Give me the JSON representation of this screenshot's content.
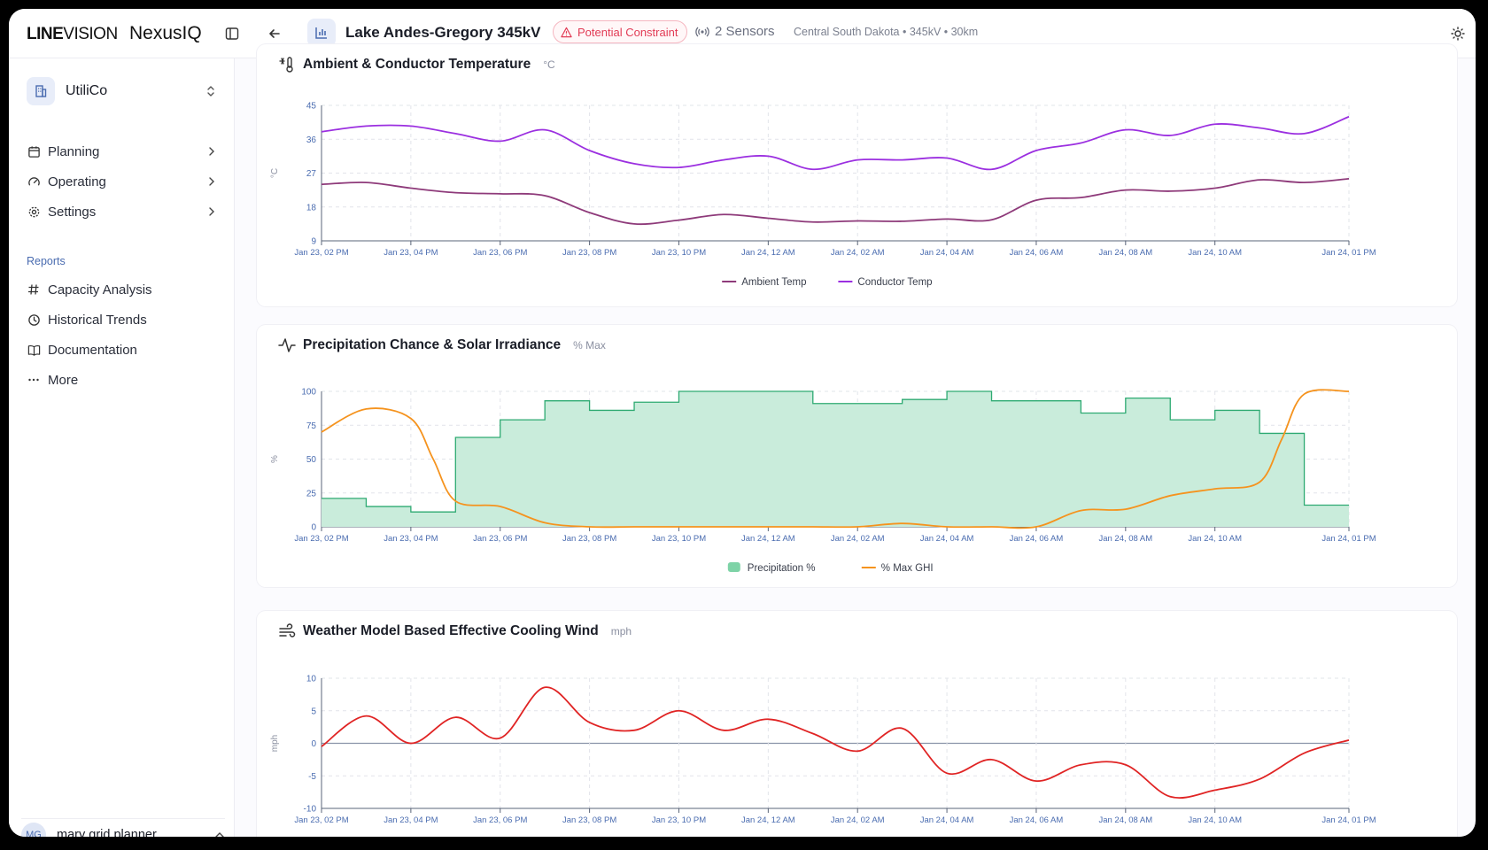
{
  "header": {
    "brand_line": "LINE",
    "brand_vision": "VISION",
    "product": "NexusIQ",
    "line_title": "Lake Andes-Gregory 345kV",
    "constraint_badge": "Potential Constraint",
    "sensors": "2 Sensors",
    "location": "Central South Dakota • 345kV • 30km",
    "colors": {
      "constraint": "#e23b55",
      "accent": "#4a6cb0"
    }
  },
  "sidebar": {
    "org_name": "UtiliCo",
    "nav": [
      {
        "label": "Planning",
        "icon": "calendar-icon"
      },
      {
        "label": "Operating",
        "icon": "gauge-icon"
      },
      {
        "label": "Settings",
        "icon": "gear-icon"
      }
    ],
    "reports_label": "Reports",
    "reports": [
      {
        "label": "Capacity Analysis",
        "icon": "hash-icon"
      },
      {
        "label": "Historical Trends",
        "icon": "clock-icon"
      },
      {
        "label": "Documentation",
        "icon": "book-icon"
      },
      {
        "label": "More",
        "icon": "more-icon"
      }
    ],
    "user_initials": "MG",
    "user_name": "mary grid planner"
  },
  "chart_data": [
    {
      "type": "line",
      "title": "Ambient & Conductor Temperature",
      "unit": "°C",
      "ylabel": "°C",
      "ylim": [
        9,
        45
      ],
      "yticks": [
        9,
        18,
        27,
        36,
        45
      ],
      "x_ticks": [
        "Jan 23, 02 PM",
        "Jan 23, 04 PM",
        "Jan 23, 06 PM",
        "Jan 23, 08 PM",
        "Jan 23, 10 PM",
        "Jan 24, 12 AM",
        "Jan 24, 02 AM",
        "Jan 24, 04 AM",
        "Jan 24, 06 AM",
        "Jan 24, 08 AM",
        "Jan 24, 10 AM",
        "Jan 24, 01 PM"
      ],
      "x_hours": [
        0,
        2,
        4,
        6,
        8,
        10,
        12,
        14,
        16,
        18,
        20,
        23
      ],
      "series": [
        {
          "name": "Ambient Temp",
          "color": "#8e3a7a",
          "x": [
            0,
            1,
            2,
            3,
            4,
            5,
            6,
            7,
            8,
            9,
            10,
            11,
            12,
            13,
            14,
            15,
            16,
            17,
            18,
            19,
            20,
            21,
            22,
            23
          ],
          "values": [
            24,
            24.5,
            23,
            21.8,
            21.5,
            21,
            16.5,
            13.5,
            14.5,
            16,
            15,
            14,
            14.3,
            14.2,
            14.8,
            14.6,
            19.8,
            20.5,
            22.5,
            22.2,
            23,
            25.2,
            24.5,
            25.5
          ]
        },
        {
          "name": "Conductor Temp",
          "color": "#9b2fe0",
          "x": [
            0,
            1,
            2,
            3,
            4,
            5,
            6,
            7,
            8,
            9,
            10,
            11,
            12,
            13,
            14,
            15,
            16,
            17,
            18,
            19,
            20,
            21,
            22,
            23
          ],
          "values": [
            38,
            39.5,
            39.5,
            37.5,
            35.5,
            38.5,
            33,
            29.5,
            28.5,
            30.5,
            31.5,
            28,
            30.5,
            30.5,
            31,
            28,
            33,
            35,
            38.5,
            37,
            40,
            39,
            37.5,
            42
          ]
        }
      ]
    },
    {
      "type": "area",
      "title": "Precipitation Chance & Solar Irradiance",
      "unit": "% Max",
      "ylabel": "%",
      "ylim": [
        0,
        100
      ],
      "yticks": [
        0,
        25,
        50,
        75,
        100
      ],
      "x_ticks": [
        "Jan 23, 02 PM",
        "Jan 23, 04 PM",
        "Jan 23, 06 PM",
        "Jan 23, 08 PM",
        "Jan 23, 10 PM",
        "Jan 24, 12 AM",
        "Jan 24, 02 AM",
        "Jan 24, 04 AM",
        "Jan 24, 06 AM",
        "Jan 24, 08 AM",
        "Jan 24, 10 AM",
        "Jan 24, 01 PM"
      ],
      "x_hours": [
        0,
        2,
        4,
        6,
        8,
        10,
        12,
        14,
        16,
        18,
        20,
        23
      ],
      "series": [
        {
          "name": "Precipitation %",
          "color": "#2eaa72",
          "fill": "#c9ecdb",
          "style": "step",
          "x": [
            0,
            1,
            2,
            3,
            4,
            5,
            6,
            7,
            8,
            9,
            10,
            11,
            12,
            13,
            14,
            15,
            16,
            17,
            18,
            19,
            20,
            21,
            22
          ],
          "values": [
            21,
            15,
            11,
            66,
            79,
            93,
            86,
            92,
            100,
            100,
            100,
            91,
            91,
            94,
            100,
            93,
            93,
            84,
            95,
            79,
            86,
            69,
            16
          ]
        },
        {
          "name": "% Max GHI",
          "color": "#f5931e",
          "x": [
            0,
            1,
            2,
            2.5,
            3,
            4,
            5,
            6,
            7,
            8,
            9,
            10,
            11,
            12,
            13,
            14,
            15,
            16,
            17,
            18,
            19,
            20,
            21,
            21.5,
            22,
            23
          ],
          "values": [
            70,
            87,
            80,
            50,
            19,
            15,
            3,
            0,
            0,
            0,
            0,
            0,
            0,
            0,
            2.5,
            0,
            0,
            0,
            12,
            13,
            23,
            28,
            33,
            65,
            98,
            100
          ]
        }
      ]
    },
    {
      "type": "line",
      "title": "Weather Model Based Effective Cooling Wind",
      "unit": "mph",
      "ylabel": "mph",
      "ylim": [
        -10,
        10
      ],
      "yticks": [
        -10,
        -5,
        0,
        5,
        10
      ],
      "x_ticks": [
        "Jan 23, 02 PM",
        "Jan 23, 04 PM",
        "Jan 23, 06 PM",
        "Jan 23, 08 PM",
        "Jan 23, 10 PM",
        "Jan 24, 12 AM",
        "Jan 24, 02 AM",
        "Jan 24, 04 AM",
        "Jan 24, 06 AM",
        "Jan 24, 08 AM",
        "Jan 24, 10 AM",
        "Jan 24, 01 PM"
      ],
      "x_hours": [
        0,
        2,
        4,
        6,
        8,
        10,
        12,
        14,
        16,
        18,
        20,
        23
      ],
      "series": [
        {
          "name": "Effective Cooling Wind",
          "color": "#e02424",
          "x": [
            0,
            1,
            2,
            3,
            4,
            5,
            6,
            7,
            8,
            9,
            10,
            11,
            12,
            13,
            14,
            15,
            16,
            17,
            18,
            19,
            20,
            21,
            22,
            23
          ],
          "values": [
            -0.5,
            4.2,
            0,
            4,
            0.8,
            8.6,
            3.2,
            2,
            5,
            2,
            3.7,
            1.5,
            -1.2,
            2.3,
            -4.6,
            -2.5,
            -5.8,
            -3.3,
            -3.3,
            -8.2,
            -7.2,
            -5.5,
            -1.5,
            0.5
          ]
        }
      ]
    }
  ]
}
